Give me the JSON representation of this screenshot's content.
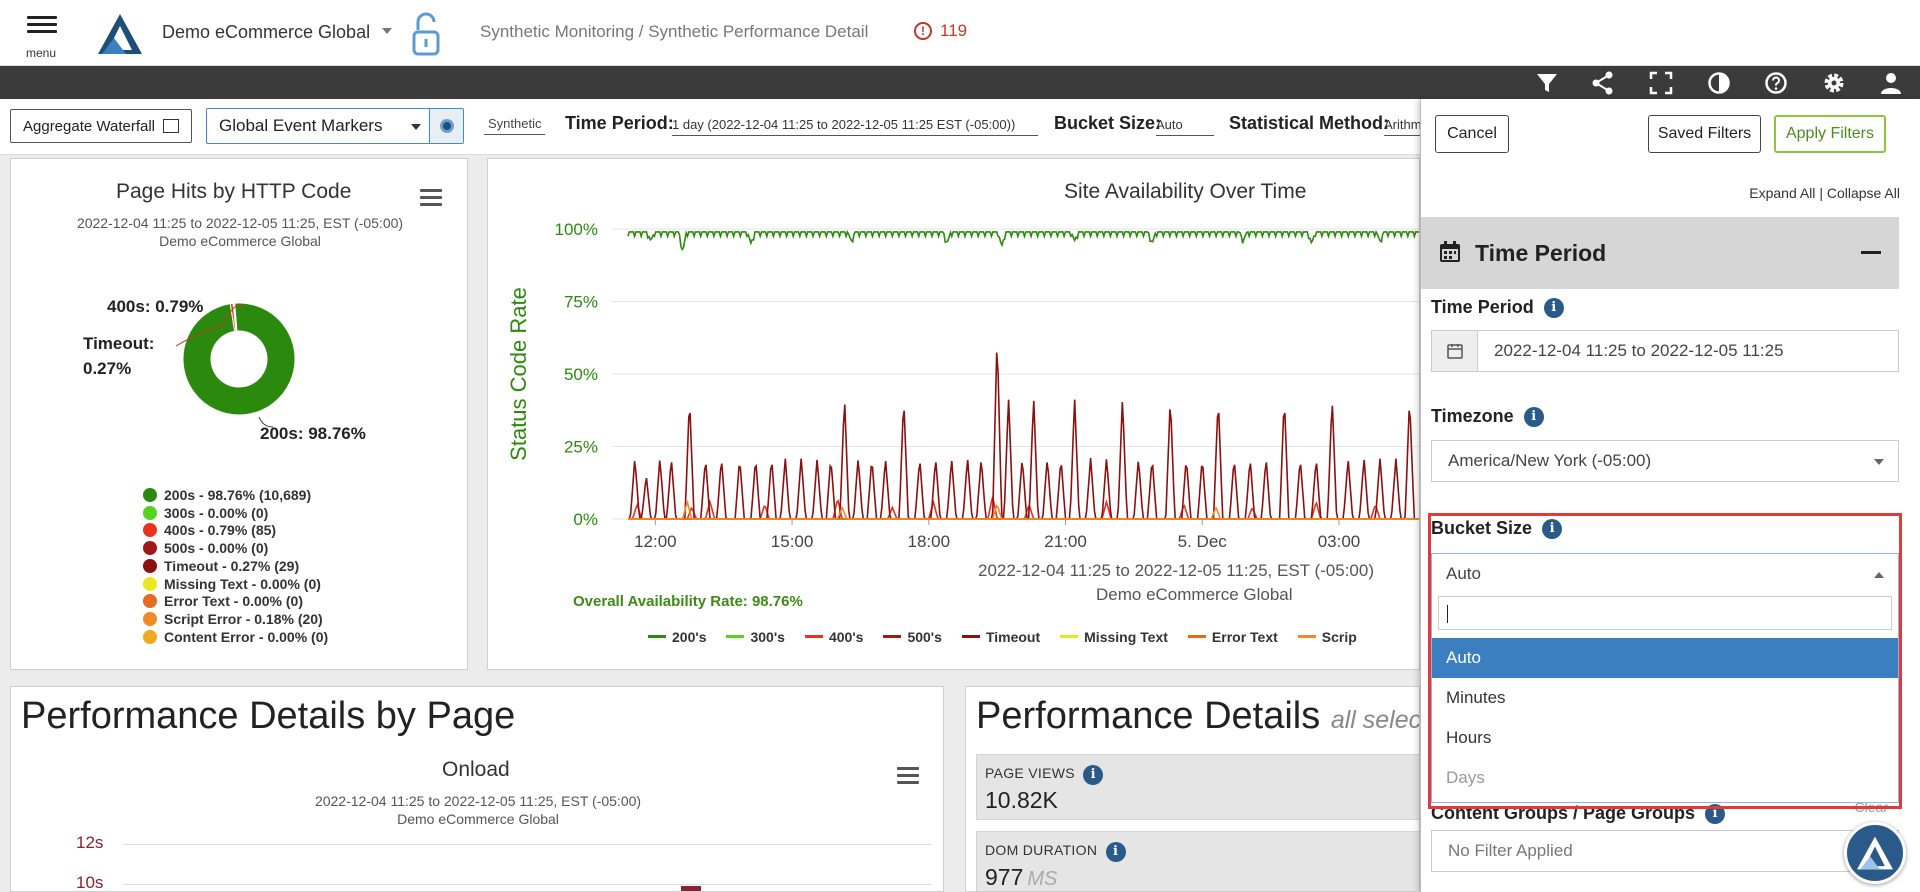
{
  "header": {
    "menu_label": "menu",
    "app_title": "Demo eCommerce Global",
    "breadcrumb": "Synthetic Monitoring / Synthetic Performance Detail",
    "alert_count": "119",
    "alert_glyph": "!"
  },
  "toolbar_icons": [
    "filter-icon",
    "share-icon",
    "fullscreen-icon",
    "contrast-icon",
    "help-icon",
    "settings-icon",
    "user-icon"
  ],
  "filters": {
    "aggregate_waterfall": "Aggregate Waterfall",
    "event_markers": "Global Event Markers",
    "synthetic_tag": "Synthetic",
    "time_period_label": "Time Period:",
    "time_period_value": "1 day (2022-12-04 11:25 to 2022-12-05 11:25 EST (-05:00))",
    "bucket_size_label": "Bucket Size:",
    "bucket_size_value": "Auto",
    "stat_method_label": "Statistical Method:",
    "stat_method_value": "Arithm"
  },
  "pie_panel": {
    "title": "Page Hits by HTTP Code",
    "date_range": "2022-12-04 11:25 to 2022-12-05 11:25, EST (-05:00)",
    "site": "Demo eCommerce Global",
    "callout_400": "400s: 0.79%",
    "callout_timeout_1": "Timeout:",
    "callout_timeout_2": "0.27%",
    "callout_200": "200s: 98.76%",
    "legend": [
      {
        "label": "200s - 98.76% (10,689)",
        "color": "#2b8a0e"
      },
      {
        "label": "300s - 0.00% (0)",
        "color": "#55d41e"
      },
      {
        "label": "400s - 0.79% (85)",
        "color": "#e8321e"
      },
      {
        "label": "500s - 0.00% (0)",
        "color": "#a01818"
      },
      {
        "label": "Timeout - 0.27% (29)",
        "color": "#8b1010"
      },
      {
        "label": "Missing Text - 0.00% (0)",
        "color": "#e8e81e"
      },
      {
        "label": "Error Text - 0.00% (0)",
        "color": "#e86a1e"
      },
      {
        "label": "Script Error - 0.18% (20)",
        "color": "#f08a28"
      },
      {
        "label": "Content Error - 0.00% (0)",
        "color": "#f0a81e"
      }
    ]
  },
  "chart_data": [
    {
      "type": "pie",
      "title": "Page Hits by HTTP Code",
      "categories": [
        "200s",
        "300s",
        "400s",
        "500s",
        "Timeout",
        "Missing Text",
        "Error Text",
        "Script Error",
        "Content Error"
      ],
      "values": [
        98.76,
        0.0,
        0.79,
        0.0,
        0.27,
        0.0,
        0.0,
        0.18,
        0.0
      ],
      "counts": [
        10689,
        0,
        85,
        0,
        29,
        0,
        0,
        20,
        0
      ],
      "donut": true
    },
    {
      "type": "line",
      "title": "Site Availability Over Time",
      "ylabel": "Status Code Rate",
      "ylim": [
        0,
        100
      ],
      "y_ticks": [
        "100%",
        "75%",
        "50%",
        "25%",
        "0%"
      ],
      "x_ticks": [
        "12:00",
        "15:00",
        "18:00",
        "21:00",
        "5. Dec",
        "03:00"
      ],
      "x_range_hours": [
        11.4,
        28.8
      ],
      "series": [
        {
          "name": "200's",
          "color": "#2b8a0e",
          "baseline": 99,
          "dips": [
            [
              12.6,
              92
            ],
            [
              11.9,
              96
            ],
            [
              14.1,
              95
            ],
            [
              16.3,
              96
            ],
            [
              18.4,
              95
            ],
            [
              19.6,
              94
            ],
            [
              21.2,
              96
            ],
            [
              22.9,
              95
            ],
            [
              24.9,
              96
            ],
            [
              26.4,
              95
            ],
            [
              27.9,
              96
            ]
          ]
        },
        {
          "name": "300's",
          "color": "#55d41e",
          "baseline": 0,
          "spikes": []
        },
        {
          "name": "400's",
          "color": "#e8321e",
          "baseline": 0,
          "spikes": [
            [
              11.6,
              5
            ],
            [
              12.8,
              4
            ],
            [
              13.2,
              6
            ],
            [
              14.4,
              5
            ],
            [
              16.0,
              7
            ],
            [
              17.2,
              4
            ],
            [
              18.1,
              6
            ],
            [
              19.4,
              8
            ],
            [
              20.2,
              5
            ],
            [
              21.9,
              6
            ],
            [
              23.6,
              5
            ],
            [
              25.1,
              4
            ],
            [
              26.5,
              6
            ],
            [
              27.8,
              5
            ]
          ]
        },
        {
          "name": "500's",
          "color": "#a01818",
          "baseline": 0,
          "spikes": []
        },
        {
          "name": "Timeout",
          "color": "#8b1010",
          "baseline": 0,
          "spikes": [
            [
              11.55,
              21
            ],
            [
              11.8,
              15
            ],
            [
              12.1,
              21
            ],
            [
              12.35,
              21
            ],
            [
              12.75,
              42
            ],
            [
              13.1,
              21
            ],
            [
              13.45,
              21
            ],
            [
              13.85,
              21
            ],
            [
              14.2,
              21
            ],
            [
              14.55,
              21
            ],
            [
              14.85,
              21
            ],
            [
              15.2,
              21
            ],
            [
              15.55,
              21
            ],
            [
              15.85,
              21
            ],
            [
              16.15,
              42
            ],
            [
              16.45,
              21
            ],
            [
              16.75,
              21
            ],
            [
              17.05,
              21
            ],
            [
              17.45,
              42
            ],
            [
              17.8,
              21
            ],
            [
              18.15,
              21
            ],
            [
              18.5,
              21
            ],
            [
              18.85,
              21
            ],
            [
              19.15,
              21
            ],
            [
              19.5,
              63
            ],
            [
              19.75,
              42
            ],
            [
              20.05,
              21
            ],
            [
              20.3,
              42
            ],
            [
              20.6,
              21
            ],
            [
              20.9,
              21
            ],
            [
              21.2,
              42
            ],
            [
              21.55,
              21
            ],
            [
              21.9,
              21
            ],
            [
              22.25,
              42
            ],
            [
              22.6,
              21
            ],
            [
              22.9,
              21
            ],
            [
              23.3,
              42
            ],
            [
              23.65,
              21
            ],
            [
              24.0,
              21
            ],
            [
              24.35,
              42
            ],
            [
              24.7,
              21
            ],
            [
              25.05,
              21
            ],
            [
              25.4,
              21
            ],
            [
              25.8,
              42
            ],
            [
              26.15,
              21
            ],
            [
              26.5,
              21
            ],
            [
              26.85,
              42
            ],
            [
              27.2,
              21
            ],
            [
              27.55,
              21
            ],
            [
              27.9,
              21
            ],
            [
              28.25,
              21
            ],
            [
              28.55,
              42
            ]
          ]
        },
        {
          "name": "Missing Text",
          "color": "#e8e81e",
          "baseline": 0,
          "spikes": []
        },
        {
          "name": "Error Text",
          "color": "#e86a1e",
          "baseline": 0,
          "spikes": []
        },
        {
          "name": "Script Error",
          "color": "#f08a28",
          "baseline": 0,
          "spikes": [
            [
              12.7,
              6
            ],
            [
              16.1,
              4
            ],
            [
              19.5,
              5
            ],
            [
              24.3,
              4
            ]
          ]
        }
      ]
    }
  ],
  "availability_panel": {
    "title": "Site Availability Over Time",
    "y_axis_label": "Status Code Rate",
    "date_range": "2022-12-04 11:25 to 2022-12-05 11:25, EST (-05:00)",
    "site": "Demo eCommerce Global",
    "overall": "Overall Availability Rate: 98.76%",
    "legend": [
      {
        "label": "200's",
        "color": "#2b8a0e"
      },
      {
        "label": "300's",
        "color": "#55d41e"
      },
      {
        "label": "400's",
        "color": "#e8321e"
      },
      {
        "label": "500's",
        "color": "#a01818"
      },
      {
        "label": "Timeout",
        "color": "#8b1010"
      },
      {
        "label": "Missing Text",
        "color": "#e8e81e"
      },
      {
        "label": "Error Text",
        "color": "#e86a1e"
      },
      {
        "label": "Scrip",
        "color": "#f08a28"
      }
    ]
  },
  "perf_by_page": {
    "title": "Performance Details by Page",
    "chart_title": "Onload",
    "date_range": "2022-12-04 11:25 to 2022-12-05 11:25, EST (-05:00)",
    "site": "Demo eCommerce Global",
    "y_ticks": [
      "12s",
      "10s"
    ]
  },
  "perf_details": {
    "title": "Performance Details",
    "subtitle": "all selec",
    "kpis": [
      {
        "label": "PAGE VIEWS",
        "value": "10.82K",
        "unit": ""
      },
      {
        "label": "DOM DURATION",
        "value": "977",
        "unit": "MS"
      }
    ]
  },
  "drawer": {
    "cancel": "Cancel",
    "saved_filters": "Saved Filters",
    "apply_filters": "Apply Filters",
    "expand_all": "Expand All",
    "separator": "|",
    "collapse_all": "Collapse All",
    "section_title": "Time Period",
    "time_period_label": "Time Period",
    "time_period_value": "2022-12-04 11:25 to 2022-12-05 11:25",
    "timezone_label": "Timezone",
    "timezone_value": "America/New York (-05:00)",
    "bucket_label": "Bucket Size",
    "bucket_value": "Auto",
    "bucket_search": "",
    "bucket_options": [
      "Auto",
      "Minutes",
      "Hours",
      "Days"
    ],
    "content_groups_label": "Content Groups / Page Groups",
    "content_groups_value": "No Filter Applied",
    "clear": "Clear",
    "info_glyph": "i"
  }
}
